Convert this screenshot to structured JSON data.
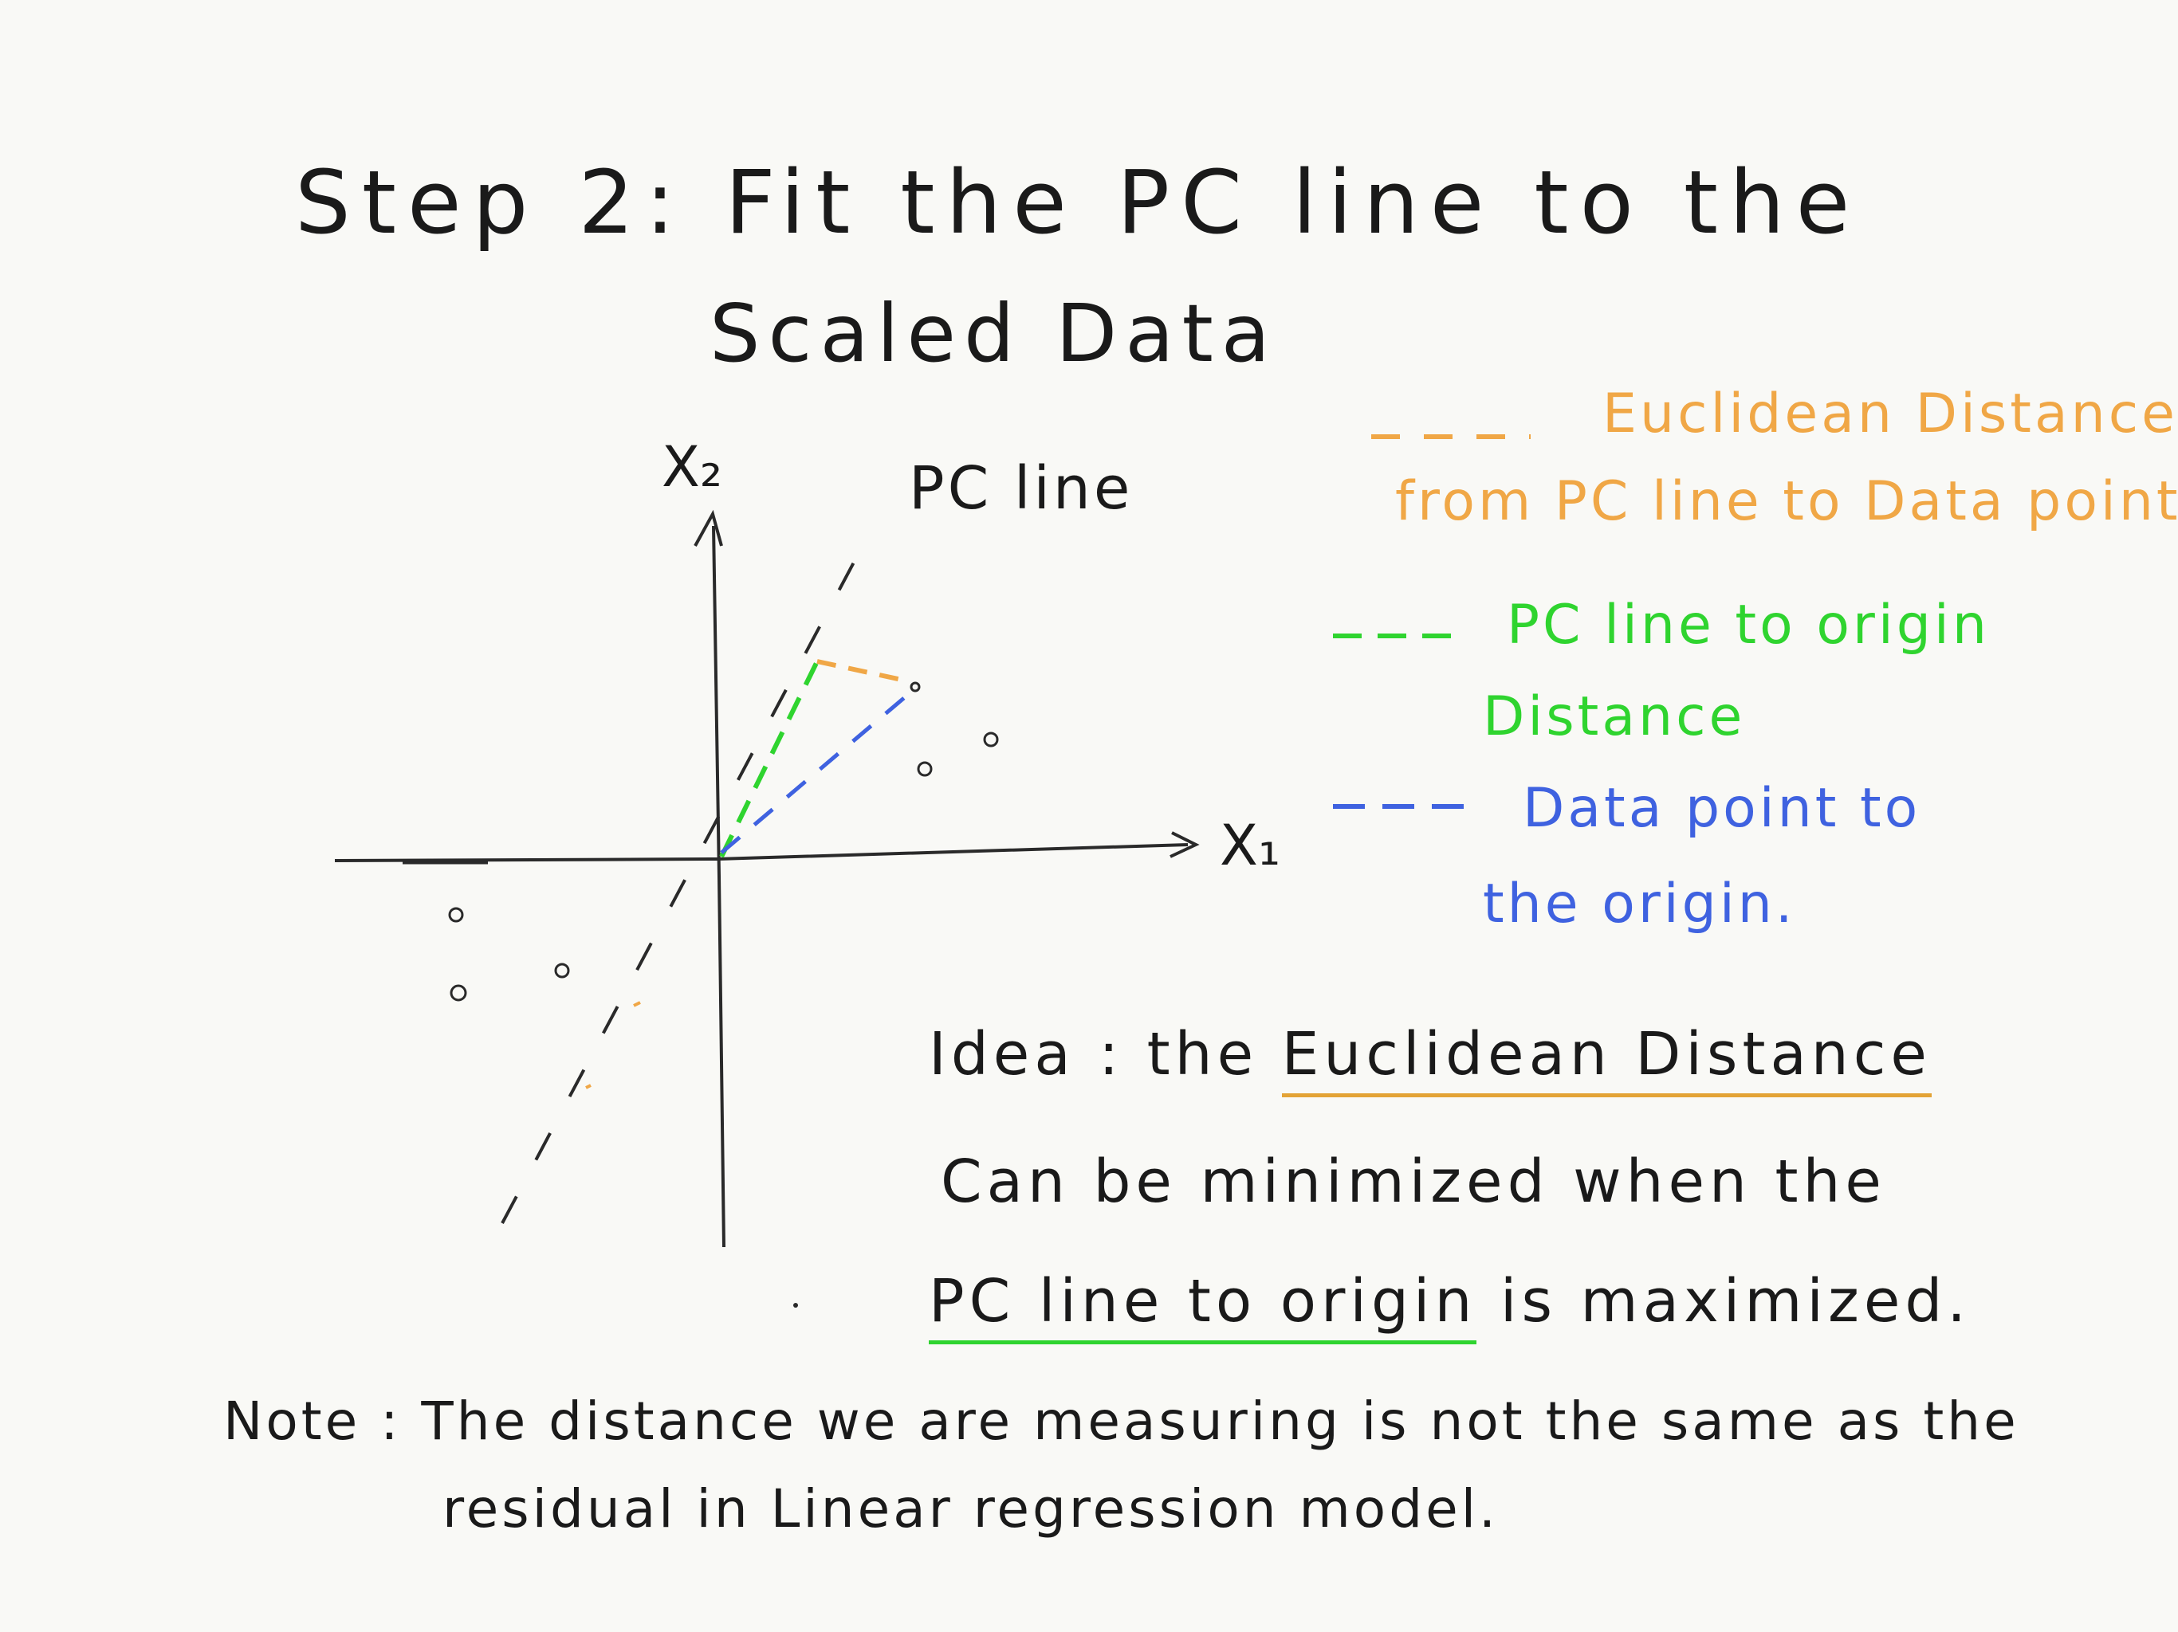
{
  "title": {
    "line1": "Step 2:  Fit the PC line to the",
    "line2": "Scaled Data"
  },
  "axes": {
    "x_label": "X₁",
    "y_label": "X₂",
    "pc_line_label": "PC line"
  },
  "legend": {
    "orange_line1": "Euclidean Distance",
    "orange_line2": "from PC line to Data point",
    "green_line1": "PC line to origin",
    "green_line2": "Distance",
    "blue_line1": "Data point to",
    "blue_line2": "the origin."
  },
  "idea": {
    "prefix": "Idea :  the ",
    "highlight1": "Euclidean Distance",
    "line2": "Can be minimized when the",
    "highlight2": "PC line to origin",
    "suffix": " is maximized."
  },
  "note": {
    "line1": "Note :  The distance we are measuring is not the same as the",
    "line2": "residual in Linear regression model."
  },
  "colors": {
    "orange": "#f0a746",
    "green": "#2fd42f",
    "blue": "#3f62e0",
    "ink": "#1a1a1a"
  }
}
